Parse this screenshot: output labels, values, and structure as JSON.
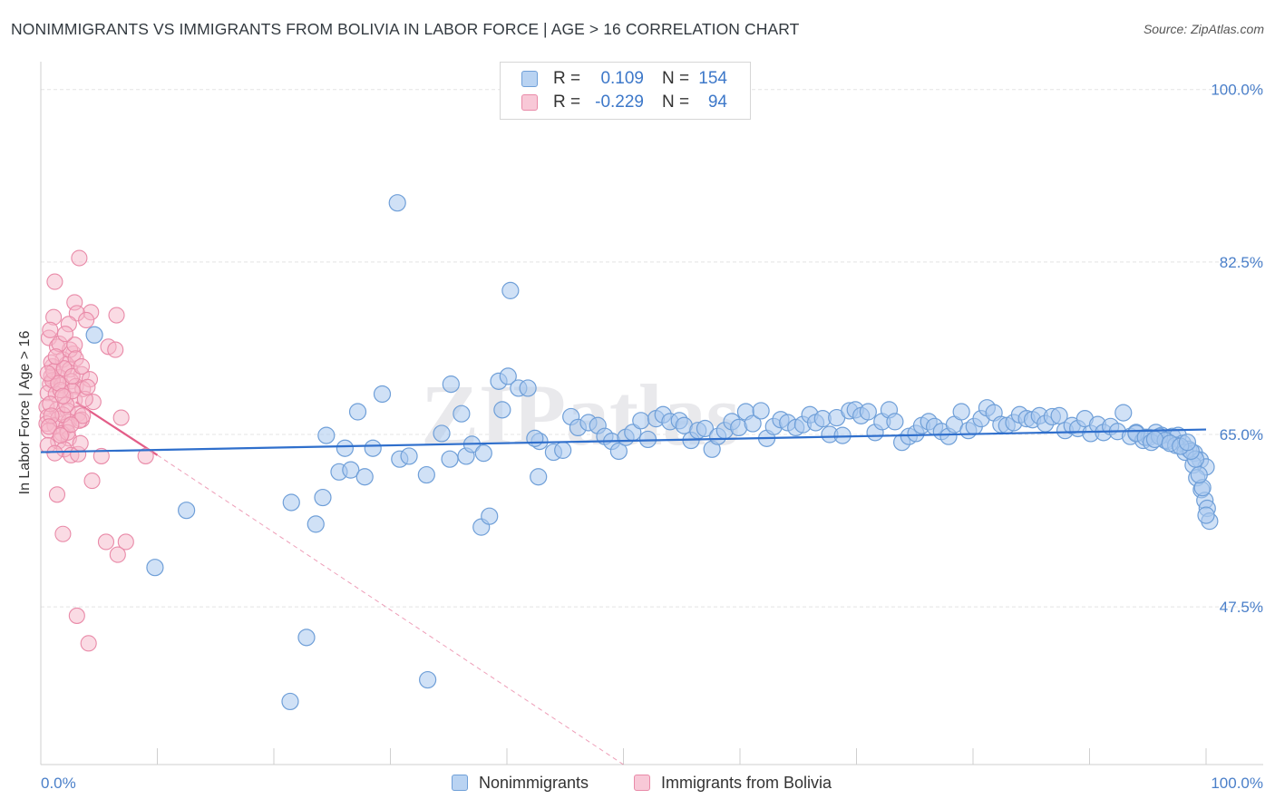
{
  "title": "NONIMMIGRANTS VS IMMIGRANTS FROM BOLIVIA IN LABOR FORCE | AGE > 16 CORRELATION CHART",
  "source": "Source: ZipAtlas.com",
  "watermark": "ZIPatlas",
  "colors": {
    "blue_fill": "#a9c8ee",
    "blue_stroke": "#6f9fd8",
    "blue_line": "#2f6fcc",
    "pink_fill": "#f5b7ca",
    "pink_stroke": "#e98aa8",
    "pink_line": "#e35d88",
    "axis_label": "#4a7fc9",
    "grid": "#e4e4e4"
  },
  "legend": {
    "rows": [
      {
        "r_label": "R =",
        "r_value": "0.109",
        "n_label": "N =",
        "n_value": "154"
      },
      {
        "r_label": "R =",
        "r_value": "-0.229",
        "n_label": "N =",
        "n_value": "94"
      }
    ]
  },
  "bottom_legend": {
    "items": [
      {
        "label": "Nonimmigrants"
      },
      {
        "label": "Immigrants from Bolivia"
      }
    ]
  },
  "chart_data": {
    "type": "scatter",
    "title": "NONIMMIGRANTS VS IMMIGRANTS FROM BOLIVIA IN LABOR FORCE | AGE > 16 CORRELATION CHART",
    "xlabel": "",
    "ylabel": "In Labor Force | Age > 16",
    "xlim": [
      0,
      100
    ],
    "ylim": [
      31.5,
      102
    ],
    "x_tick_labels": [
      "0.0%",
      "100.0%"
    ],
    "y_ticks": [
      47.5,
      65.0,
      82.5,
      100.0
    ],
    "y_tick_labels": [
      "47.5%",
      "65.0%",
      "82.5%",
      "100.0%"
    ],
    "grid": true,
    "legend_position": "top-center",
    "series": [
      {
        "name": "Nonimmigrants",
        "R": 0.109,
        "N": 154,
        "trend": {
          "x0": 0,
          "y0": 63.2,
          "x1": 100,
          "y1": 65.5,
          "style": "solid"
        },
        "points": [
          [
            30.6,
            88.5
          ],
          [
            40.3,
            79.6
          ],
          [
            4.6,
            75.1
          ],
          [
            29.3,
            69.1
          ],
          [
            35.2,
            70.1
          ],
          [
            39.3,
            70.4
          ],
          [
            40.1,
            70.9
          ],
          [
            41.0,
            69.7
          ],
          [
            41.8,
            69.7
          ],
          [
            27.2,
            67.3
          ],
          [
            36.1,
            67.1
          ],
          [
            39.6,
            67.5
          ],
          [
            24.5,
            64.9
          ],
          [
            26.1,
            63.6
          ],
          [
            28.5,
            63.6
          ],
          [
            30.8,
            62.5
          ],
          [
            31.6,
            62.8
          ],
          [
            34.4,
            65.1
          ],
          [
            35.1,
            62.5
          ],
          [
            36.5,
            62.8
          ],
          [
            37.0,
            64.0
          ],
          [
            38.0,
            63.1
          ],
          [
            42.8,
            64.3
          ],
          [
            44.0,
            63.2
          ],
          [
            44.8,
            63.4
          ],
          [
            45.5,
            66.8
          ],
          [
            46.1,
            65.7
          ],
          [
            47.0,
            66.2
          ],
          [
            47.8,
            65.9
          ],
          [
            48.4,
            64.8
          ],
          [
            49.0,
            64.3
          ],
          [
            49.6,
            63.3
          ],
          [
            50.2,
            64.7
          ],
          [
            50.8,
            65.2
          ],
          [
            51.5,
            66.4
          ],
          [
            52.1,
            64.5
          ],
          [
            52.8,
            66.6
          ],
          [
            53.4,
            67.0
          ],
          [
            54.0,
            66.3
          ],
          [
            54.8,
            66.4
          ],
          [
            55.2,
            65.9
          ],
          [
            55.8,
            64.4
          ],
          [
            56.4,
            65.4
          ],
          [
            57.0,
            65.6
          ],
          [
            57.6,
            63.5
          ],
          [
            58.1,
            64.8
          ],
          [
            58.7,
            65.4
          ],
          [
            59.3,
            66.3
          ],
          [
            59.9,
            65.7
          ],
          [
            60.5,
            67.3
          ],
          [
            61.1,
            66.1
          ],
          [
            61.8,
            67.4
          ],
          [
            62.3,
            64.6
          ],
          [
            62.9,
            65.8
          ],
          [
            63.5,
            66.5
          ],
          [
            64.1,
            66.2
          ],
          [
            64.8,
            65.7
          ],
          [
            65.4,
            66.0
          ],
          [
            66.0,
            67.0
          ],
          [
            66.5,
            66.2
          ],
          [
            67.1,
            66.6
          ],
          [
            67.7,
            65.0
          ],
          [
            68.3,
            66.7
          ],
          [
            68.8,
            64.9
          ],
          [
            69.4,
            67.4
          ],
          [
            69.9,
            67.5
          ],
          [
            70.4,
            66.9
          ],
          [
            71.0,
            67.3
          ],
          [
            71.6,
            65.2
          ],
          [
            72.2,
            66.3
          ],
          [
            72.8,
            67.5
          ],
          [
            73.3,
            66.3
          ],
          [
            73.9,
            64.2
          ],
          [
            74.5,
            64.8
          ],
          [
            75.1,
            65.1
          ],
          [
            75.6,
            65.9
          ],
          [
            76.2,
            66.3
          ],
          [
            76.7,
            65.8
          ],
          [
            77.3,
            65.3
          ],
          [
            77.9,
            64.8
          ],
          [
            78.4,
            66.0
          ],
          [
            79.0,
            67.3
          ],
          [
            79.6,
            65.4
          ],
          [
            80.1,
            65.8
          ],
          [
            80.7,
            66.6
          ],
          [
            81.2,
            67.7
          ],
          [
            81.8,
            67.2
          ],
          [
            82.4,
            66.0
          ],
          [
            82.9,
            65.9
          ],
          [
            83.5,
            66.2
          ],
          [
            84.0,
            67.0
          ],
          [
            84.6,
            66.6
          ],
          [
            85.1,
            66.5
          ],
          [
            85.7,
            66.9
          ],
          [
            86.2,
            66.1
          ],
          [
            86.8,
            66.8
          ],
          [
            87.4,
            66.9
          ],
          [
            87.9,
            65.4
          ],
          [
            88.5,
            65.9
          ],
          [
            89.0,
            65.6
          ],
          [
            89.6,
            66.6
          ],
          [
            90.1,
            65.1
          ],
          [
            90.7,
            66.0
          ],
          [
            91.2,
            65.2
          ],
          [
            91.8,
            65.8
          ],
          [
            92.4,
            65.3
          ],
          [
            92.9,
            67.2
          ],
          [
            93.5,
            64.8
          ],
          [
            94.0,
            65.2
          ],
          [
            94.6,
            64.4
          ],
          [
            95.1,
            64.7
          ],
          [
            95.7,
            65.2
          ],
          [
            96.2,
            64.9
          ],
          [
            96.7,
            64.3
          ],
          [
            97.1,
            64.8
          ],
          [
            97.6,
            64.9
          ],
          [
            98.0,
            64.1
          ],
          [
            98.5,
            63.5
          ],
          [
            99.0,
            63.1
          ],
          [
            99.5,
            62.4
          ],
          [
            100.0,
            61.7
          ],
          [
            94.0,
            65.1
          ],
          [
            94.8,
            64.7
          ],
          [
            95.3,
            64.2
          ],
          [
            96.0,
            64.8
          ],
          [
            96.5,
            64.4
          ],
          [
            97.4,
            63.9
          ],
          [
            98.2,
            63.2
          ],
          [
            98.9,
            61.9
          ],
          [
            99.2,
            60.6
          ],
          [
            99.6,
            59.4
          ],
          [
            99.9,
            58.3
          ],
          [
            100.1,
            57.5
          ],
          [
            100.3,
            56.2
          ],
          [
            100.0,
            56.8
          ],
          [
            99.7,
            59.6
          ],
          [
            99.4,
            60.9
          ],
          [
            99.1,
            62.5
          ],
          [
            98.7,
            63.3
          ],
          [
            95.6,
            64.5
          ],
          [
            96.9,
            64.1
          ],
          [
            97.8,
            63.8
          ],
          [
            98.4,
            64.2
          ],
          [
            12.5,
            57.3
          ],
          [
            21.5,
            58.1
          ],
          [
            23.6,
            55.9
          ],
          [
            24.2,
            58.6
          ],
          [
            25.6,
            61.2
          ],
          [
            26.6,
            61.4
          ],
          [
            27.8,
            60.7
          ],
          [
            33.1,
            60.9
          ],
          [
            37.8,
            55.6
          ],
          [
            38.5,
            56.7
          ],
          [
            42.7,
            60.7
          ],
          [
            9.8,
            51.5
          ],
          [
            22.8,
            44.4
          ],
          [
            21.4,
            37.9
          ],
          [
            33.2,
            40.1
          ],
          [
            42.4,
            64.6
          ]
        ]
      },
      {
        "name": "Immigrants from Bolivia",
        "R": -0.229,
        "N": 94,
        "trend": {
          "x0": 0,
          "y0": 70.6,
          "x1": 10,
          "y1": 62.9,
          "style": "solid",
          "dashed_extension_to": {
            "x": 50,
            "y": 31.5
          }
        },
        "points": [
          [
            3.3,
            82.9
          ],
          [
            1.2,
            80.5
          ],
          [
            2.9,
            78.4
          ],
          [
            4.3,
            77.4
          ],
          [
            3.1,
            77.3
          ],
          [
            6.5,
            77.1
          ],
          [
            1.1,
            76.9
          ],
          [
            3.9,
            76.6
          ],
          [
            2.4,
            76.2
          ],
          [
            0.7,
            74.8
          ],
          [
            5.8,
            73.9
          ],
          [
            6.4,
            73.6
          ],
          [
            1.4,
            73.9
          ],
          [
            2.8,
            73.2
          ],
          [
            1.9,
            72.6
          ],
          [
            2.2,
            72.1
          ],
          [
            1.0,
            71.9
          ],
          [
            2.5,
            71.6
          ],
          [
            3.5,
            71.1
          ],
          [
            0.9,
            70.9
          ],
          [
            1.6,
            70.8
          ],
          [
            2.6,
            70.4
          ],
          [
            4.2,
            70.6
          ],
          [
            0.8,
            70.1
          ],
          [
            1.8,
            70.0
          ],
          [
            3.0,
            69.9
          ],
          [
            3.6,
            69.6
          ],
          [
            0.6,
            69.2
          ],
          [
            1.3,
            69.1
          ],
          [
            2.1,
            68.8
          ],
          [
            2.9,
            68.5
          ],
          [
            4.5,
            68.3
          ],
          [
            0.5,
            67.8
          ],
          [
            1.4,
            67.5
          ],
          [
            2.3,
            67.4
          ],
          [
            3.2,
            67.1
          ],
          [
            0.6,
            66.8
          ],
          [
            1.5,
            66.6
          ],
          [
            2.4,
            66.3
          ],
          [
            3.5,
            66.5
          ],
          [
            6.9,
            66.7
          ],
          [
            0.5,
            66.1
          ],
          [
            1.2,
            65.9
          ],
          [
            2.2,
            65.8
          ],
          [
            0.7,
            65.4
          ],
          [
            1.8,
            65.1
          ],
          [
            2.4,
            64.6
          ],
          [
            1.5,
            64.3
          ],
          [
            0.6,
            63.9
          ],
          [
            2.0,
            63.5
          ],
          [
            2.6,
            62.9
          ],
          [
            3.2,
            63.0
          ],
          [
            5.2,
            62.8
          ],
          [
            9.0,
            62.8
          ],
          [
            3.3,
            66.4
          ],
          [
            1.9,
            67.0
          ],
          [
            2.7,
            69.4
          ],
          [
            1.0,
            70.5
          ],
          [
            3.8,
            68.6
          ],
          [
            0.9,
            72.3
          ],
          [
            2.5,
            73.6
          ],
          [
            1.6,
            74.2
          ],
          [
            4.4,
            60.3
          ],
          [
            1.4,
            58.9
          ],
          [
            1.9,
            54.9
          ],
          [
            5.6,
            54.1
          ],
          [
            7.3,
            54.1
          ],
          [
            6.6,
            52.8
          ],
          [
            3.1,
            46.6
          ],
          [
            4.1,
            43.8
          ],
          [
            1.1,
            71.4
          ],
          [
            2.0,
            71.7
          ],
          [
            2.7,
            70.9
          ],
          [
            0.8,
            68.1
          ],
          [
            1.7,
            69.5
          ],
          [
            2.3,
            65.2
          ],
          [
            3.4,
            64.1
          ],
          [
            0.9,
            66.9
          ],
          [
            1.3,
            72.9
          ],
          [
            2.9,
            74.1
          ],
          [
            3.6,
            66.9
          ],
          [
            0.7,
            65.8
          ],
          [
            1.5,
            70.2
          ],
          [
            2.2,
            68.0
          ],
          [
            3.0,
            72.7
          ],
          [
            4.0,
            69.8
          ],
          [
            0.6,
            71.2
          ],
          [
            1.9,
            68.9
          ],
          [
            2.6,
            66.0
          ],
          [
            1.2,
            63.1
          ],
          [
            0.8,
            75.6
          ],
          [
            3.5,
            71.9
          ],
          [
            2.1,
            75.2
          ],
          [
            1.7,
            64.9
          ]
        ]
      }
    ]
  }
}
